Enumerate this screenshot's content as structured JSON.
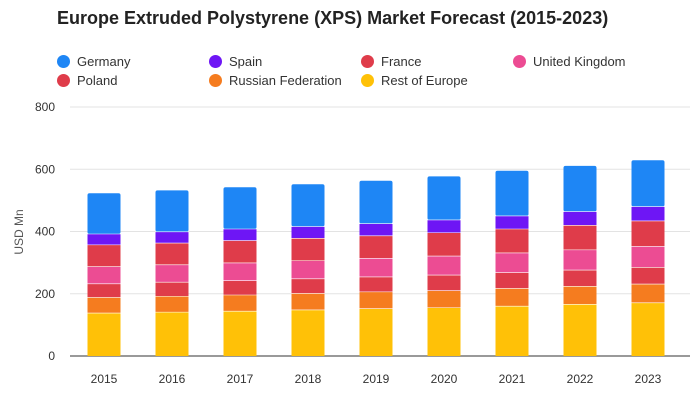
{
  "chart_data": {
    "type": "bar",
    "stacked": true,
    "title": "Europe Extruded Polystyrene (XPS) Market Forecast (2015-2023)",
    "xlabel": "",
    "ylabel": "USD Mn",
    "ylim": [
      0,
      800
    ],
    "yticks": [
      0,
      200,
      400,
      600,
      800
    ],
    "grid": true,
    "legend_position": "top",
    "categories": [
      "2015",
      "2016",
      "2017",
      "2018",
      "2019",
      "2020",
      "2021",
      "2022",
      "2023"
    ],
    "series": [
      {
        "name": "Rest of Europe",
        "color": "#FFC107",
        "values": [
          138,
          141,
          144,
          148,
          152,
          155,
          160,
          166,
          171
        ]
      },
      {
        "name": "Russian Federation",
        "color": "#F57C1F",
        "values": [
          50,
          51,
          52,
          53,
          54,
          55,
          57,
          58,
          60
        ]
      },
      {
        "name": "Poland",
        "color": "#DF3C4A",
        "values": [
          44,
          45,
          46,
          47,
          48,
          50,
          51,
          52,
          54
        ]
      },
      {
        "name": "United Kingdom",
        "color": "#EC4C93",
        "values": [
          55,
          56,
          57,
          58,
          60,
          61,
          63,
          65,
          67
        ]
      },
      {
        "name": "France",
        "color": "#DF3C4A",
        "values": [
          70,
          70,
          72,
          72,
          72,
          75,
          77,
          79,
          82
        ]
      },
      {
        "name": "Spain",
        "color": "#6E16F5",
        "values": [
          35,
          36,
          37,
          38,
          39,
          41,
          42,
          44,
          46
        ]
      },
      {
        "name": "Germany",
        "color": "#1E86F5",
        "values": [
          131,
          133,
          134,
          136,
          138,
          140,
          145,
          147,
          149
        ]
      }
    ],
    "legend": [
      {
        "name": "Germany",
        "color": "#1E86F5"
      },
      {
        "name": "Spain",
        "color": "#6E16F5"
      },
      {
        "name": "France",
        "color": "#DF3C4A"
      },
      {
        "name": "United Kingdom",
        "color": "#EC4C93"
      },
      {
        "name": "Poland",
        "color": "#DF3C4A"
      },
      {
        "name": "Russian Federation",
        "color": "#F57C1F"
      },
      {
        "name": "Rest of Europe",
        "color": "#FFC107"
      }
    ]
  }
}
